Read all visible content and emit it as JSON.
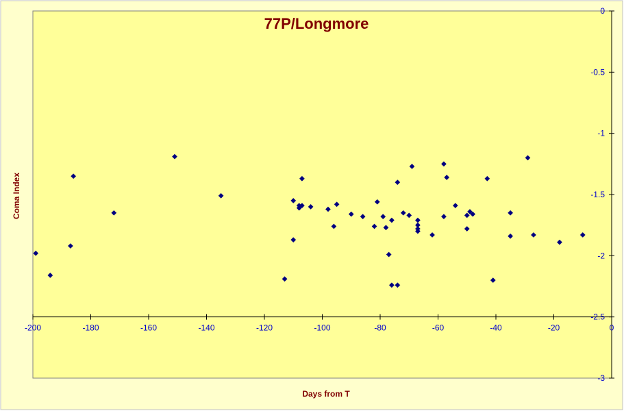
{
  "chart_data": {
    "type": "scatter",
    "title": "77P/Longmore",
    "xlabel": "Days from T",
    "ylabel": "Coma Index",
    "xlim": [
      -200,
      0
    ],
    "ylim": [
      -3,
      0
    ],
    "x_ticks": [
      -200,
      -180,
      -160,
      -140,
      -120,
      -100,
      -80,
      -60,
      -40,
      -20,
      0
    ],
    "y_ticks": [
      0,
      -0.5,
      -1,
      -1.5,
      -2,
      -2.5,
      -3
    ],
    "x_tick_labels": [
      "-200",
      "-180",
      "-160",
      "-140",
      "-120",
      "-100",
      "-80",
      "-60",
      "-40",
      "-20",
      "0"
    ],
    "y_tick_labels": [
      "0",
      "-0.5",
      "-1",
      "-1.5",
      "-2",
      "-2.5",
      "-3"
    ],
    "x_axis_at_y": -2.5,
    "grid": false,
    "legend": "none",
    "colors": {
      "plot_background": "#ffff99",
      "outer_background": "#ffffcc",
      "marker": "#000080",
      "tick_labels": "#0000cc",
      "titles": "#800000",
      "outer_border": "#c0c0c0"
    },
    "series": [
      {
        "marker": "diamond",
        "points": [
          [
            -199,
            -1.98
          ],
          [
            -194,
            -2.16
          ],
          [
            -187,
            -1.92
          ],
          [
            -186,
            -1.35
          ],
          [
            -172,
            -1.65
          ],
          [
            -151,
            -1.19
          ],
          [
            -135,
            -1.51
          ],
          [
            -113,
            -2.19
          ],
          [
            -110,
            -1.55
          ],
          [
            -110,
            -1.87
          ],
          [
            -108,
            -1.59
          ],
          [
            -108,
            -1.61
          ],
          [
            -107,
            -1.59
          ],
          [
            -107,
            -1.37
          ],
          [
            -104,
            -1.6
          ],
          [
            -98,
            -1.62
          ],
          [
            -96,
            -1.76
          ],
          [
            -95,
            -1.58
          ],
          [
            -90,
            -1.66
          ],
          [
            -86,
            -1.68
          ],
          [
            -82,
            -1.76
          ],
          [
            -81,
            -1.56
          ],
          [
            -79,
            -1.68
          ],
          [
            -78,
            -1.77
          ],
          [
            -77,
            -1.99
          ],
          [
            -76,
            -2.24
          ],
          [
            -76,
            -1.71
          ],
          [
            -74,
            -1.4
          ],
          [
            -74,
            -2.24
          ],
          [
            -72,
            -1.65
          ],
          [
            -70,
            -1.67
          ],
          [
            -69,
            -1.27
          ],
          [
            -67,
            -1.71
          ],
          [
            -67,
            -1.75
          ],
          [
            -67,
            -1.78
          ],
          [
            -67,
            -1.8
          ],
          [
            -62,
            -1.83
          ],
          [
            -58,
            -1.25
          ],
          [
            -58,
            -1.68
          ],
          [
            -57,
            -1.36
          ],
          [
            -54,
            -1.59
          ],
          [
            -50,
            -1.67
          ],
          [
            -50,
            -1.78
          ],
          [
            -49,
            -1.64
          ],
          [
            -48,
            -1.66
          ],
          [
            -43,
            -1.37
          ],
          [
            -41,
            -2.2
          ],
          [
            -35,
            -1.65
          ],
          [
            -35,
            -1.84
          ],
          [
            -29,
            -1.2
          ],
          [
            -27,
            -1.83
          ],
          [
            -18,
            -1.89
          ],
          [
            -10,
            -1.83
          ]
        ]
      }
    ]
  }
}
